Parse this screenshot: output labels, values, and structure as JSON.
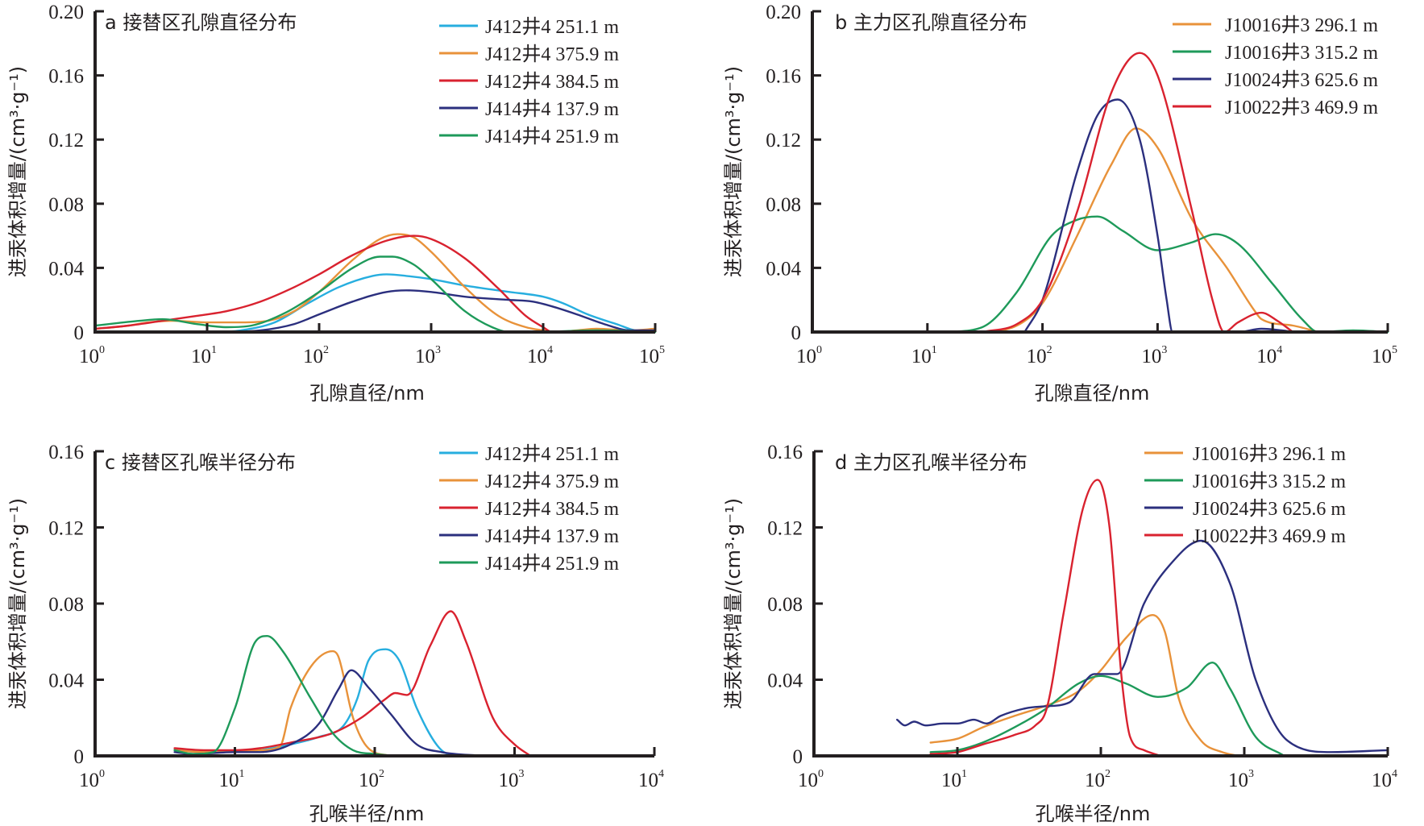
{
  "chart_data": [
    {
      "id": "a",
      "type": "line",
      "title": "a 接替区孔隙直径分布",
      "xlabel": "孔隙直径/nm",
      "ylabel": "进汞体积增量/(cm³·g⁻¹)",
      "xscale": "log",
      "xlim": [
        1,
        100000
      ],
      "ylim": [
        0,
        0.2
      ],
      "yticks": [
        "0",
        "0.04",
        "0.08",
        "0.12",
        "0.16",
        "0.20"
      ],
      "ytick_values": [
        0,
        0.04,
        0.08,
        0.12,
        0.16,
        0.2
      ],
      "xtick_exponents": [
        "0",
        "1",
        "2",
        "3",
        "4",
        "5"
      ],
      "legend_position": "top-right",
      "series": [
        {
          "name": "J412井4 251.1 m",
          "color": "#27AEDF",
          "x": [
            13,
            20,
            40,
            80,
            150,
            300,
            400,
            600,
            1000,
            2000,
            5000,
            10000,
            15000,
            25000,
            45000,
            70000,
            100000
          ],
          "y": [
            0,
            0.001,
            0.006,
            0.018,
            0.028,
            0.035,
            0.036,
            0.035,
            0.033,
            0.029,
            0.025,
            0.022,
            0.018,
            0.011,
            0.005,
            0.001,
            0.001
          ]
        },
        {
          "name": "J412井4 375.9 m",
          "color": "#E8923A",
          "x": [
            1,
            2,
            3,
            5,
            10,
            20,
            35,
            60,
            100,
            200,
            350,
            500,
            700,
            1000,
            2000,
            4000,
            7000,
            10000,
            13000,
            20000,
            30000,
            60000,
            100000
          ],
          "y": [
            0.002,
            0.004,
            0.006,
            0.007,
            0.006,
            0.006,
            0.007,
            0.013,
            0.025,
            0.045,
            0.058,
            0.061,
            0.059,
            0.05,
            0.028,
            0.01,
            0.003,
            0.001,
            0,
            0.001,
            0.002,
            0.001,
            0.002
          ]
        },
        {
          "name": "J412井4 384.5 m",
          "color": "#D9222F",
          "x": [
            1,
            2,
            4,
            8,
            15,
            30,
            60,
            100,
            200,
            400,
            700,
            1000,
            2000,
            4000,
            7000,
            10000,
            12000,
            20000,
            50000,
            100000
          ],
          "y": [
            0.002,
            0.004,
            0.007,
            0.01,
            0.013,
            0.019,
            0.028,
            0.036,
            0.048,
            0.057,
            0.06,
            0.058,
            0.046,
            0.027,
            0.01,
            0.003,
            0,
            0,
            0,
            0
          ]
        },
        {
          "name": "J414井4 137.9 m",
          "color": "#2B2F7E",
          "x": [
            15,
            30,
            60,
            100,
            200,
            400,
            600,
            1000,
            2000,
            5000,
            8000,
            12000,
            20000,
            35000,
            60000,
            100000
          ],
          "y": [
            0,
            0.001,
            0.005,
            0.011,
            0.019,
            0.025,
            0.026,
            0.025,
            0.022,
            0.02,
            0.019,
            0.016,
            0.011,
            0.005,
            0.001,
            0.001
          ]
        },
        {
          "name": "J414井4 251.9 m",
          "color": "#1E9A5A",
          "x": [
            1,
            2.5,
            4,
            8,
            15,
            25,
            50,
            100,
            200,
            350,
            450,
            700,
            1000,
            2000,
            3500,
            5000,
            8000,
            30000,
            100000
          ],
          "y": [
            0.004,
            0.007,
            0.008,
            0.005,
            0.003,
            0.004,
            0.012,
            0.025,
            0.04,
            0.047,
            0.047,
            0.042,
            0.033,
            0.013,
            0.003,
            0,
            0,
            0.001,
            0
          ]
        }
      ]
    },
    {
      "id": "b",
      "type": "line",
      "title": "b 主力区孔隙直径分布",
      "xlabel": "孔隙直径/nm",
      "ylabel": "进汞体积增量/(cm³·g⁻¹)",
      "xscale": "log",
      "xlim": [
        1,
        100000
      ],
      "ylim": [
        0,
        0.2
      ],
      "yticks": [
        "0",
        "0.04",
        "0.08",
        "0.12",
        "0.16",
        "0.20"
      ],
      "ytick_values": [
        0,
        0.04,
        0.08,
        0.12,
        0.16,
        0.2
      ],
      "xtick_exponents": [
        "0",
        "1",
        "2",
        "3",
        "4",
        "5"
      ],
      "legend_position": "top-right",
      "series": [
        {
          "name": "J10016井3 296.1 m",
          "color": "#E8923A",
          "x": [
            30,
            60,
            100,
            200,
            400,
            650,
            1000,
            2000,
            4000,
            7000,
            8000,
            15000,
            25000
          ],
          "y": [
            0,
            0.004,
            0.018,
            0.06,
            0.105,
            0.127,
            0.115,
            0.07,
            0.04,
            0.013,
            0.008,
            0.004,
            0
          ]
        },
        {
          "name": "J10016井3 315.2 m",
          "color": "#1E9A5A",
          "x": [
            15,
            30,
            60,
            120,
            200,
            300,
            500,
            1000,
            2000,
            3200,
            5000,
            10000,
            18000,
            25000,
            50000,
            100000
          ],
          "y": [
            0,
            0.003,
            0.025,
            0.06,
            0.07,
            0.072,
            0.063,
            0.051,
            0.056,
            0.061,
            0.055,
            0.03,
            0.008,
            0,
            0.001,
            0
          ]
        },
        {
          "name": "J10024井3 625.6 m",
          "color": "#2B2F7E",
          "x": [
            70,
            100,
            200,
            300,
            450,
            700,
            1000,
            1200,
            1350,
            5000,
            8000,
            12000,
            15000
          ],
          "y": [
            0,
            0.02,
            0.1,
            0.135,
            0.145,
            0.12,
            0.06,
            0.02,
            0,
            0,
            0.002,
            0.001,
            0
          ]
        },
        {
          "name": "J10022井3 469.9 m",
          "color": "#D9222F",
          "x": [
            30,
            60,
            100,
            200,
            400,
            700,
            1000,
            2000,
            3000,
            3800,
            5000,
            8000,
            11000,
            15000
          ],
          "y": [
            0,
            0.005,
            0.02,
            0.075,
            0.15,
            0.174,
            0.16,
            0.075,
            0.02,
            0,
            0.006,
            0.012,
            0.007,
            0
          ]
        }
      ]
    },
    {
      "id": "c",
      "type": "line",
      "title": "c 接替区孔喉半径分布",
      "xlabel": "孔喉半径/nm",
      "ylabel": "进汞体积增量/(cm³·g⁻¹)",
      "xscale": "log",
      "xlim": [
        1,
        10000
      ],
      "ylim": [
        0,
        0.16
      ],
      "yticks": [
        "0",
        "0.04",
        "0.08",
        "0.12",
        "0.16"
      ],
      "ytick_values": [
        0,
        0.04,
        0.08,
        0.12,
        0.16
      ],
      "xtick_exponents": [
        "0",
        "1",
        "2",
        "3",
        "4"
      ],
      "legend_position": "top-right",
      "series": [
        {
          "name": "J412井4 251.1 m",
          "color": "#27AEDF",
          "x": [
            3.7,
            6,
            10,
            15,
            25,
            40,
            60,
            75,
            90,
            120,
            150,
            200,
            300,
            400
          ],
          "y": [
            0.003,
            0.002,
            0.002,
            0.003,
            0.006,
            0.01,
            0.016,
            0.03,
            0.05,
            0.056,
            0.05,
            0.025,
            0.003,
            0
          ]
        },
        {
          "name": "J412井4 375.9 m",
          "color": "#E8923A",
          "x": [
            3.7,
            6,
            10,
            15,
            21,
            25,
            35,
            50,
            55,
            70,
            90,
            130
          ],
          "y": [
            0.003,
            0.002,
            0.002,
            0.003,
            0.005,
            0.025,
            0.047,
            0.055,
            0.052,
            0.02,
            0.004,
            0
          ]
        },
        {
          "name": "J412井4 384.5 m",
          "color": "#D9222F",
          "x": [
            3.7,
            6,
            10,
            15,
            25,
            50,
            80,
            120,
            140,
            170,
            250,
            350,
            450,
            700,
            1000,
            1300
          ],
          "y": [
            0.004,
            0.003,
            0.003,
            0.004,
            0.007,
            0.012,
            0.02,
            0.03,
            0.033,
            0.032,
            0.058,
            0.076,
            0.06,
            0.02,
            0.006,
            0
          ]
        },
        {
          "name": "J414井4 137.9 m",
          "color": "#2B2F7E",
          "x": [
            3.7,
            5,
            10,
            15,
            25,
            40,
            55,
            68,
            90,
            130,
            200,
            300,
            600
          ],
          "y": [
            0.002,
            0.001,
            0.002,
            0.002,
            0.006,
            0.017,
            0.035,
            0.045,
            0.036,
            0.022,
            0.006,
            0.002,
            0
          ]
        },
        {
          "name": "J414井4 251.9 m",
          "color": "#1E9A5A",
          "x": [
            3.7,
            5,
            7,
            10,
            14,
            17,
            22,
            35,
            50,
            70,
            100,
            140
          ],
          "y": [
            0.003,
            0.001,
            0.002,
            0.025,
            0.06,
            0.063,
            0.055,
            0.03,
            0.012,
            0.003,
            0.001,
            0
          ]
        }
      ]
    },
    {
      "id": "d",
      "type": "line",
      "title": "d 主力区孔喉半径分布",
      "xlabel": "孔喉半径/nm",
      "ylabel": "进汞体积增量/(cm³·g⁻¹)",
      "xscale": "log",
      "xlim": [
        1,
        10000
      ],
      "ylim": [
        0,
        0.16
      ],
      "yticks": [
        "0",
        "0.04",
        "0.08",
        "0.12",
        "0.16"
      ],
      "ytick_values": [
        0,
        0.04,
        0.08,
        0.12,
        0.16
      ],
      "xtick_exponents": [
        "0",
        "1",
        "2",
        "3",
        "4"
      ],
      "legend_position": "top-right",
      "series": [
        {
          "name": "J10016井3 296.1 m",
          "color": "#E8923A",
          "x": [
            6.5,
            10,
            15,
            25,
            40,
            70,
            100,
            150,
            230,
            280,
            350,
            500,
            700,
            900
          ],
          "y": [
            0.007,
            0.009,
            0.015,
            0.021,
            0.026,
            0.034,
            0.045,
            0.062,
            0.074,
            0.065,
            0.03,
            0.008,
            0.002,
            0
          ]
        },
        {
          "name": "J10016井3 315.2 m",
          "color": "#1E9A5A",
          "x": [
            6.5,
            10,
            15,
            25,
            40,
            70,
            100,
            150,
            250,
            400,
            600,
            800,
            1200,
            1900
          ],
          "y": [
            0.002,
            0.003,
            0.007,
            0.015,
            0.024,
            0.038,
            0.042,
            0.038,
            0.031,
            0.036,
            0.049,
            0.035,
            0.01,
            0
          ]
        },
        {
          "name": "J10024井3 625.6 m",
          "color": "#2B2F7E",
          "x": [
            3.8,
            4.3,
            5,
            6,
            8,
            10,
            13,
            16,
            20,
            30,
            40,
            60,
            90,
            130,
            200,
            300,
            500,
            800,
            1200,
            2000,
            4000,
            10000
          ],
          "y": [
            0.019,
            0.016,
            0.018,
            0.016,
            0.017,
            0.017,
            0.019,
            0.017,
            0.021,
            0.025,
            0.026,
            0.028,
            0.043,
            0.043,
            0.08,
            0.1,
            0.113,
            0.09,
            0.04,
            0.008,
            0.002,
            0.003
          ]
        },
        {
          "name": "J10022井3 469.9 m",
          "color": "#D9222F",
          "x": [
            6.5,
            10,
            15,
            25,
            35,
            42,
            55,
            75,
            95,
            115,
            140,
            160,
            200,
            260
          ],
          "y": [
            0.001,
            0.002,
            0.006,
            0.011,
            0.016,
            0.025,
            0.075,
            0.13,
            0.145,
            0.12,
            0.04,
            0.01,
            0.003,
            0
          ]
        }
      ]
    }
  ]
}
